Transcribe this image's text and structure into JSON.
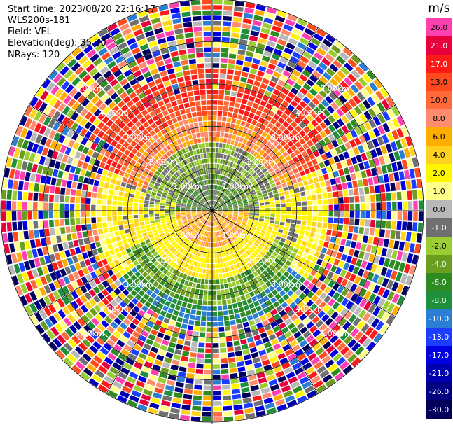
{
  "header": {
    "start_time": "Start time: 2023/08/20 22:16:17",
    "instrument": "WLS200s-181",
    "field": "Field: VEL",
    "elevation": "Elevation(deg): 35.30",
    "nrays": "NRays: 120"
  },
  "colorbar": {
    "unit": "m/s",
    "levels": [
      {
        "label": "26.0",
        "color": "#ff40b0"
      },
      {
        "label": "21.0",
        "color": "#e8003c"
      },
      {
        "label": "17.0",
        "color": "#ff1a1a"
      },
      {
        "label": "13.0",
        "color": "#ff4a1e"
      },
      {
        "label": "10.0",
        "color": "#ff6a3a"
      },
      {
        "label": "8.0",
        "color": "#ff8c6e"
      },
      {
        "label": "6.0",
        "color": "#ffae00"
      },
      {
        "label": "4.0",
        "color": "#ffd21f"
      },
      {
        "label": "2.0",
        "color": "#fff600"
      },
      {
        "label": "1.0",
        "color": "#ffff8a"
      },
      {
        "label": "0.0",
        "color": "#b8b8b8"
      },
      {
        "label": "-1.0",
        "color": "#707070"
      },
      {
        "label": "-2.0",
        "color": "#9acd32"
      },
      {
        "label": "-4.0",
        "color": "#6b9d1f"
      },
      {
        "label": "-6.0",
        "color": "#2e8b22"
      },
      {
        "label": "-8.0",
        "color": "#1e8f3a"
      },
      {
        "label": "-10.0",
        "color": "#2a7fd4"
      },
      {
        "label": "-13.0",
        "color": "#1c3cff"
      },
      {
        "label": "-17.0",
        "color": "#0000e0"
      },
      {
        "label": "-21.0",
        "color": "#0000b0"
      },
      {
        "label": "-26.0",
        "color": "#000080"
      },
      {
        "label": "-30.0",
        "color": "#00005a"
      }
    ]
  },
  "range_rings": {
    "labels": [
      "1.00km",
      "2.00km",
      "3.00km",
      "4.00km",
      "5.00km"
    ],
    "values_km": [
      1,
      2,
      3,
      4,
      5
    ]
  },
  "scan": {
    "nrays": 120,
    "max_range_km": 5.0
  }
}
